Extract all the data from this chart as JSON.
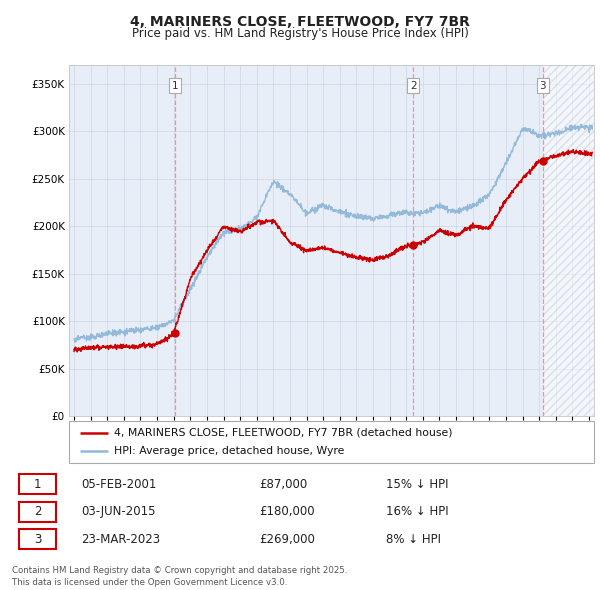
{
  "title": "4, MARINERS CLOSE, FLEETWOOD, FY7 7BR",
  "subtitle": "Price paid vs. HM Land Registry's House Price Index (HPI)",
  "ytick_values": [
    0,
    50000,
    100000,
    150000,
    200000,
    250000,
    300000,
    350000
  ],
  "ylim": [
    0,
    370000
  ],
  "xlim_start": 1994.7,
  "xlim_end": 2026.3,
  "sale_points": [
    {
      "year": 2001.09,
      "price": 87000,
      "label": "1"
    },
    {
      "year": 2015.42,
      "price": 180000,
      "label": "2"
    },
    {
      "year": 2023.22,
      "price": 269000,
      "label": "3"
    }
  ],
  "legend_entries": [
    {
      "label": "4, MARINERS CLOSE, FLEETWOOD, FY7 7BR (detached house)",
      "color": "#cc0000"
    },
    {
      "label": "HPI: Average price, detached house, Wyre",
      "color": "#90b8d8"
    }
  ],
  "table_rows": [
    {
      "num": "1",
      "date": "05-FEB-2001",
      "price": "£87,000",
      "hpi": "15% ↓ HPI"
    },
    {
      "num": "2",
      "date": "03-JUN-2015",
      "price": "£180,000",
      "hpi": "16% ↓ HPI"
    },
    {
      "num": "3",
      "date": "23-MAR-2023",
      "price": "£269,000",
      "hpi": "8% ↓ HPI"
    }
  ],
  "footnote": "Contains HM Land Registry data © Crown copyright and database right 2025.\nThis data is licensed under the Open Government Licence v3.0.",
  "background_color": "#ffffff",
  "plot_bg_color": "#e8eef8",
  "grid_color": "#c8cfe0",
  "title_color": "#222222",
  "red_line_color": "#cc0000",
  "blue_line_color": "#90b8d8",
  "dashed_line_color": "#e88888",
  "hpi_base": {
    "1995": 80000,
    "1996": 83000,
    "1997": 87000,
    "1998": 89000,
    "1999": 91000,
    "2000": 94000,
    "2001": 103000,
    "2002": 135000,
    "2003": 168000,
    "2004": 195000,
    "2005": 198000,
    "2006": 210000,
    "2007": 248000,
    "2008": 235000,
    "2009": 215000,
    "2010": 222000,
    "2011": 215000,
    "2012": 210000,
    "2013": 208000,
    "2014": 212000,
    "2015": 215000,
    "2016": 215000,
    "2017": 222000,
    "2018": 218000,
    "2019": 225000,
    "2020": 235000,
    "2021": 268000,
    "2022": 305000,
    "2023": 298000,
    "2024": 300000,
    "2025": 305000,
    "2026": 305000
  },
  "red_base": {
    "1995": 70000,
    "1996": 72000,
    "1997": 73000,
    "1998": 73000,
    "1999": 74000,
    "2000": 76000,
    "2001": 87000,
    "2002": 145000,
    "2003": 175000,
    "2004": 200000,
    "2005": 195000,
    "2006": 205000,
    "2007": 208000,
    "2008": 185000,
    "2009": 175000,
    "2010": 178000,
    "2011": 172000,
    "2012": 168000,
    "2013": 165000,
    "2014": 170000,
    "2015": 180000,
    "2016": 183000,
    "2017": 195000,
    "2018": 190000,
    "2019": 200000,
    "2020": 198000,
    "2021": 228000,
    "2022": 250000,
    "2023": 269000,
    "2024": 275000,
    "2025": 280000,
    "2026": 278000
  }
}
